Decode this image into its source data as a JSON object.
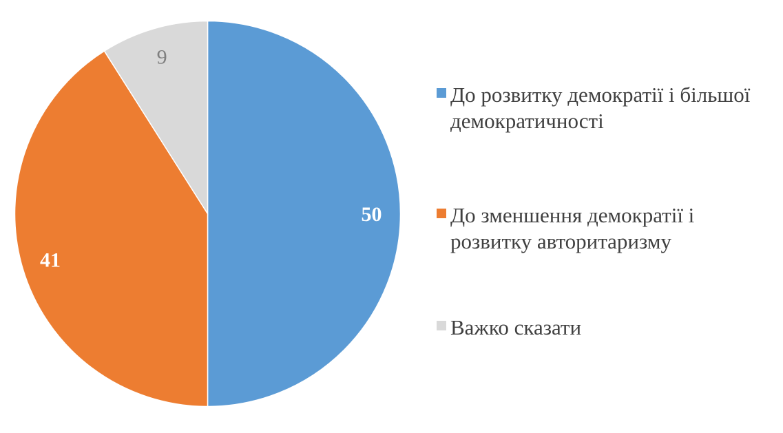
{
  "background_color": "#FFFFFF",
  "chart_data": {
    "type": "pie",
    "title": "",
    "start_angle_deg": 0,
    "direction": "clockwise",
    "legend_position": "right",
    "legend_text_color": "#404040",
    "slices": [
      {
        "label": "До розвитку демократії і більшої демократичності",
        "value": 50,
        "color": "#5B9BD5",
        "data_label": "50",
        "data_label_color": "#FFFFFF",
        "data_label_bold": true
      },
      {
        "label": "До зменшення демократії і розвитку авторитаризму",
        "value": 41,
        "color": "#ED7D31",
        "data_label": "41",
        "data_label_color": "#FFFFFF",
        "data_label_bold": true
      },
      {
        "label": "Важко сказати",
        "value": 9,
        "color": "#D9D9D9",
        "data_label": "9",
        "data_label_color": "#7F7F7F",
        "data_label_bold": false
      }
    ]
  }
}
